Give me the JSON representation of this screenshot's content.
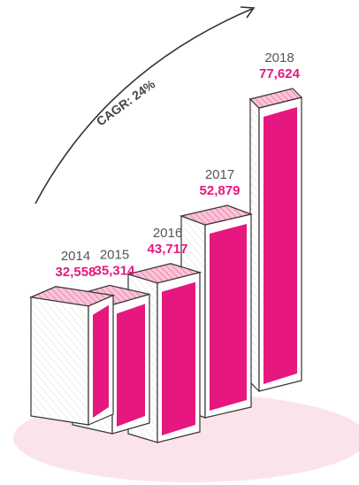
{
  "chart_data": {
    "type": "bar",
    "annotation": "CAGR: 24%",
    "categories": [
      "2014",
      "2015",
      "2016",
      "2017",
      "2018"
    ],
    "values": [
      32558,
      35314,
      43717,
      52879,
      77624
    ],
    "value_labels": [
      "32,558",
      "35,314",
      "43,717",
      "52,879",
      "77,624"
    ],
    "color": "#e6177f"
  }
}
